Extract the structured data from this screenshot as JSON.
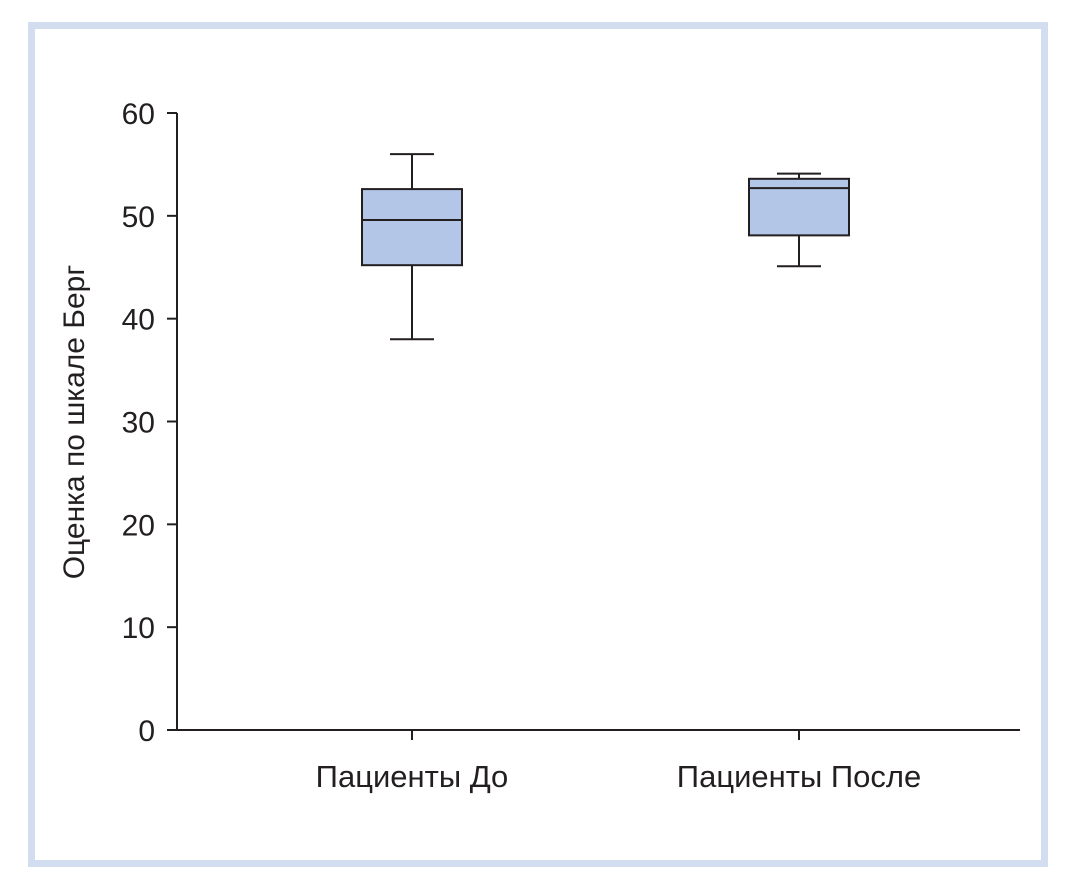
{
  "chart_data": {
    "type": "box",
    "ylabel": "Оценка по шкале Берг",
    "xlabel": "",
    "ylim": [
      0,
      60
    ],
    "yticks": [
      0,
      10,
      20,
      30,
      40,
      50,
      60
    ],
    "grid": false,
    "box_color": "#b3c6e8",
    "line_color": "#231f20",
    "categories": [
      "Пациенты До",
      "Пациенты После"
    ],
    "boxes": [
      {
        "category": "Пациенты До",
        "min": 38,
        "q1": 45.2,
        "median": 49.6,
        "q3": 52.6,
        "max": 56
      },
      {
        "category": "Пациенты После",
        "min": 45.1,
        "q1": 48.1,
        "median": 52.7,
        "q3": 53.6,
        "max": 54.1
      }
    ]
  }
}
